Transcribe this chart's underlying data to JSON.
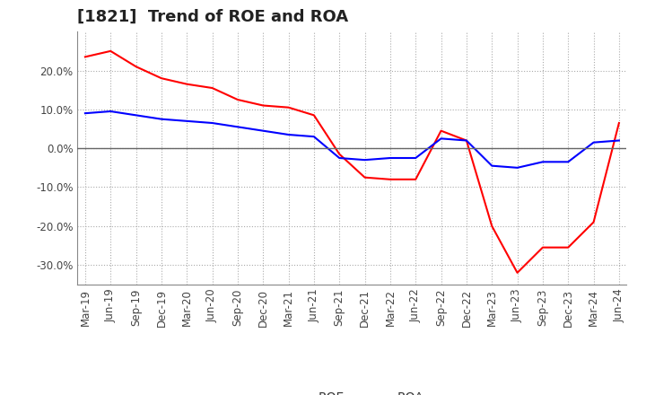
{
  "title": "[1821]  Trend of ROE and ROA",
  "x_labels": [
    "Mar-19",
    "Jun-19",
    "Sep-19",
    "Dec-19",
    "Mar-20",
    "Jun-20",
    "Sep-20",
    "Dec-20",
    "Mar-21",
    "Jun-21",
    "Sep-21",
    "Dec-21",
    "Mar-22",
    "Jun-22",
    "Sep-22",
    "Dec-22",
    "Mar-23",
    "Jun-23",
    "Sep-23",
    "Dec-23",
    "Mar-24",
    "Jun-24"
  ],
  "roe": [
    23.5,
    25.0,
    21.0,
    18.0,
    16.5,
    15.5,
    12.5,
    11.0,
    10.5,
    8.5,
    -1.5,
    -7.5,
    -8.0,
    -8.0,
    4.5,
    2.0,
    -20.0,
    -32.0,
    -25.5,
    -25.5,
    -19.0,
    6.5
  ],
  "roa": [
    9.0,
    9.5,
    8.5,
    7.5,
    7.0,
    6.5,
    5.5,
    4.5,
    3.5,
    3.0,
    -2.5,
    -3.0,
    -2.5,
    -2.5,
    2.5,
    2.0,
    -4.5,
    -5.0,
    -3.5,
    -3.5,
    1.5,
    2.0
  ],
  "roe_color": "#ff0000",
  "roa_color": "#0000ff",
  "background_color": "#ffffff",
  "plot_bg_color": "#ffffff",
  "grid_color": "#aaaaaa",
  "ylim": [
    -35,
    30
  ],
  "yticks": [
    -30,
    -20,
    -10,
    0,
    10,
    20
  ],
  "legend_labels": [
    "ROE",
    "ROA"
  ],
  "title_fontsize": 13,
  "axis_fontsize": 8.5,
  "legend_fontsize": 10,
  "line_width": 1.5
}
